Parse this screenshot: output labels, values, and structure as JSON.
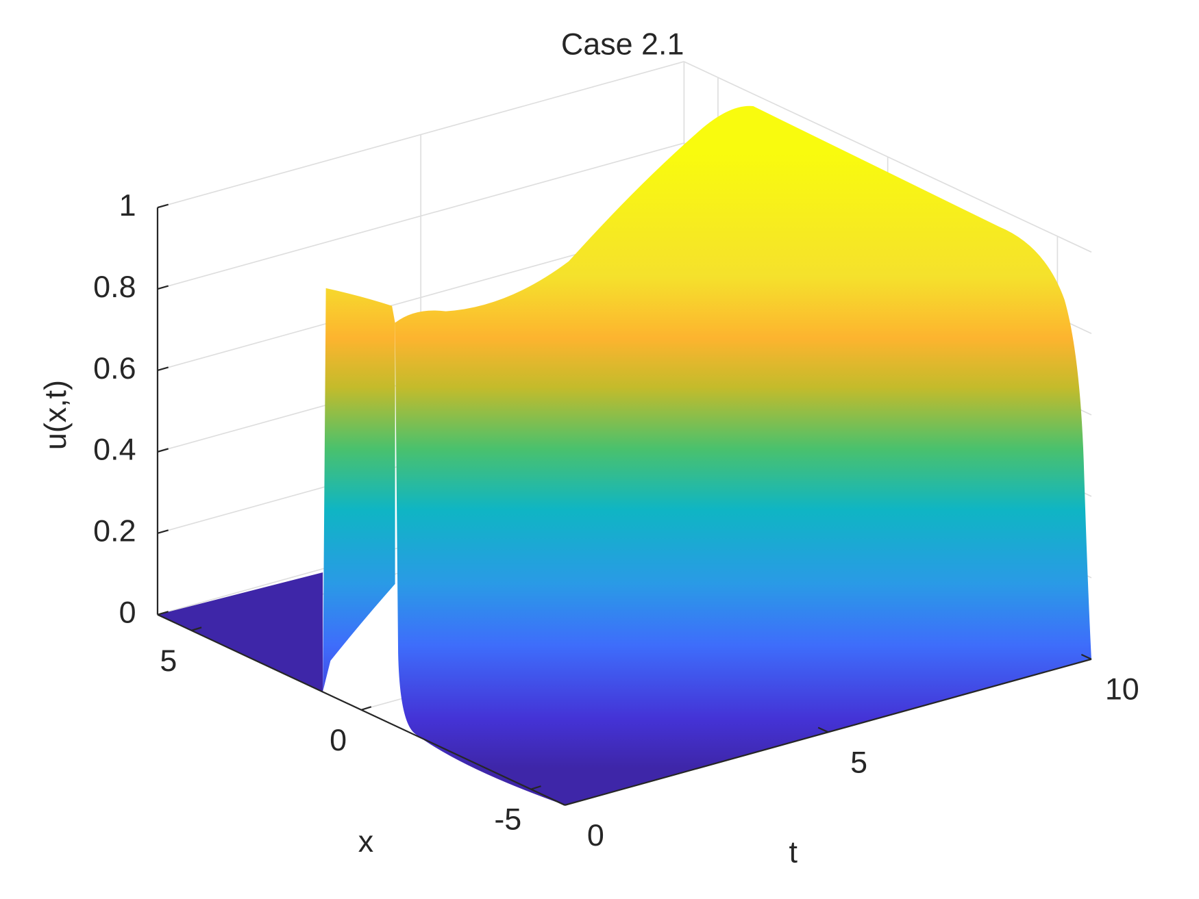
{
  "chart_data": {
    "type": "surface",
    "title": "Case 2.1",
    "x_label": "x",
    "y_label": "t",
    "z_label": "u(x,t)",
    "xlim": [
      -6,
      6
    ],
    "xticks": [
      -5,
      0,
      5
    ],
    "ylim": [
      0,
      10
    ],
    "yticks": [
      0,
      5,
      10
    ],
    "zlim": [
      0,
      1
    ],
    "zticks": [
      0,
      0.2,
      0.4,
      0.6,
      0.8,
      1
    ],
    "grid": true
  }
}
